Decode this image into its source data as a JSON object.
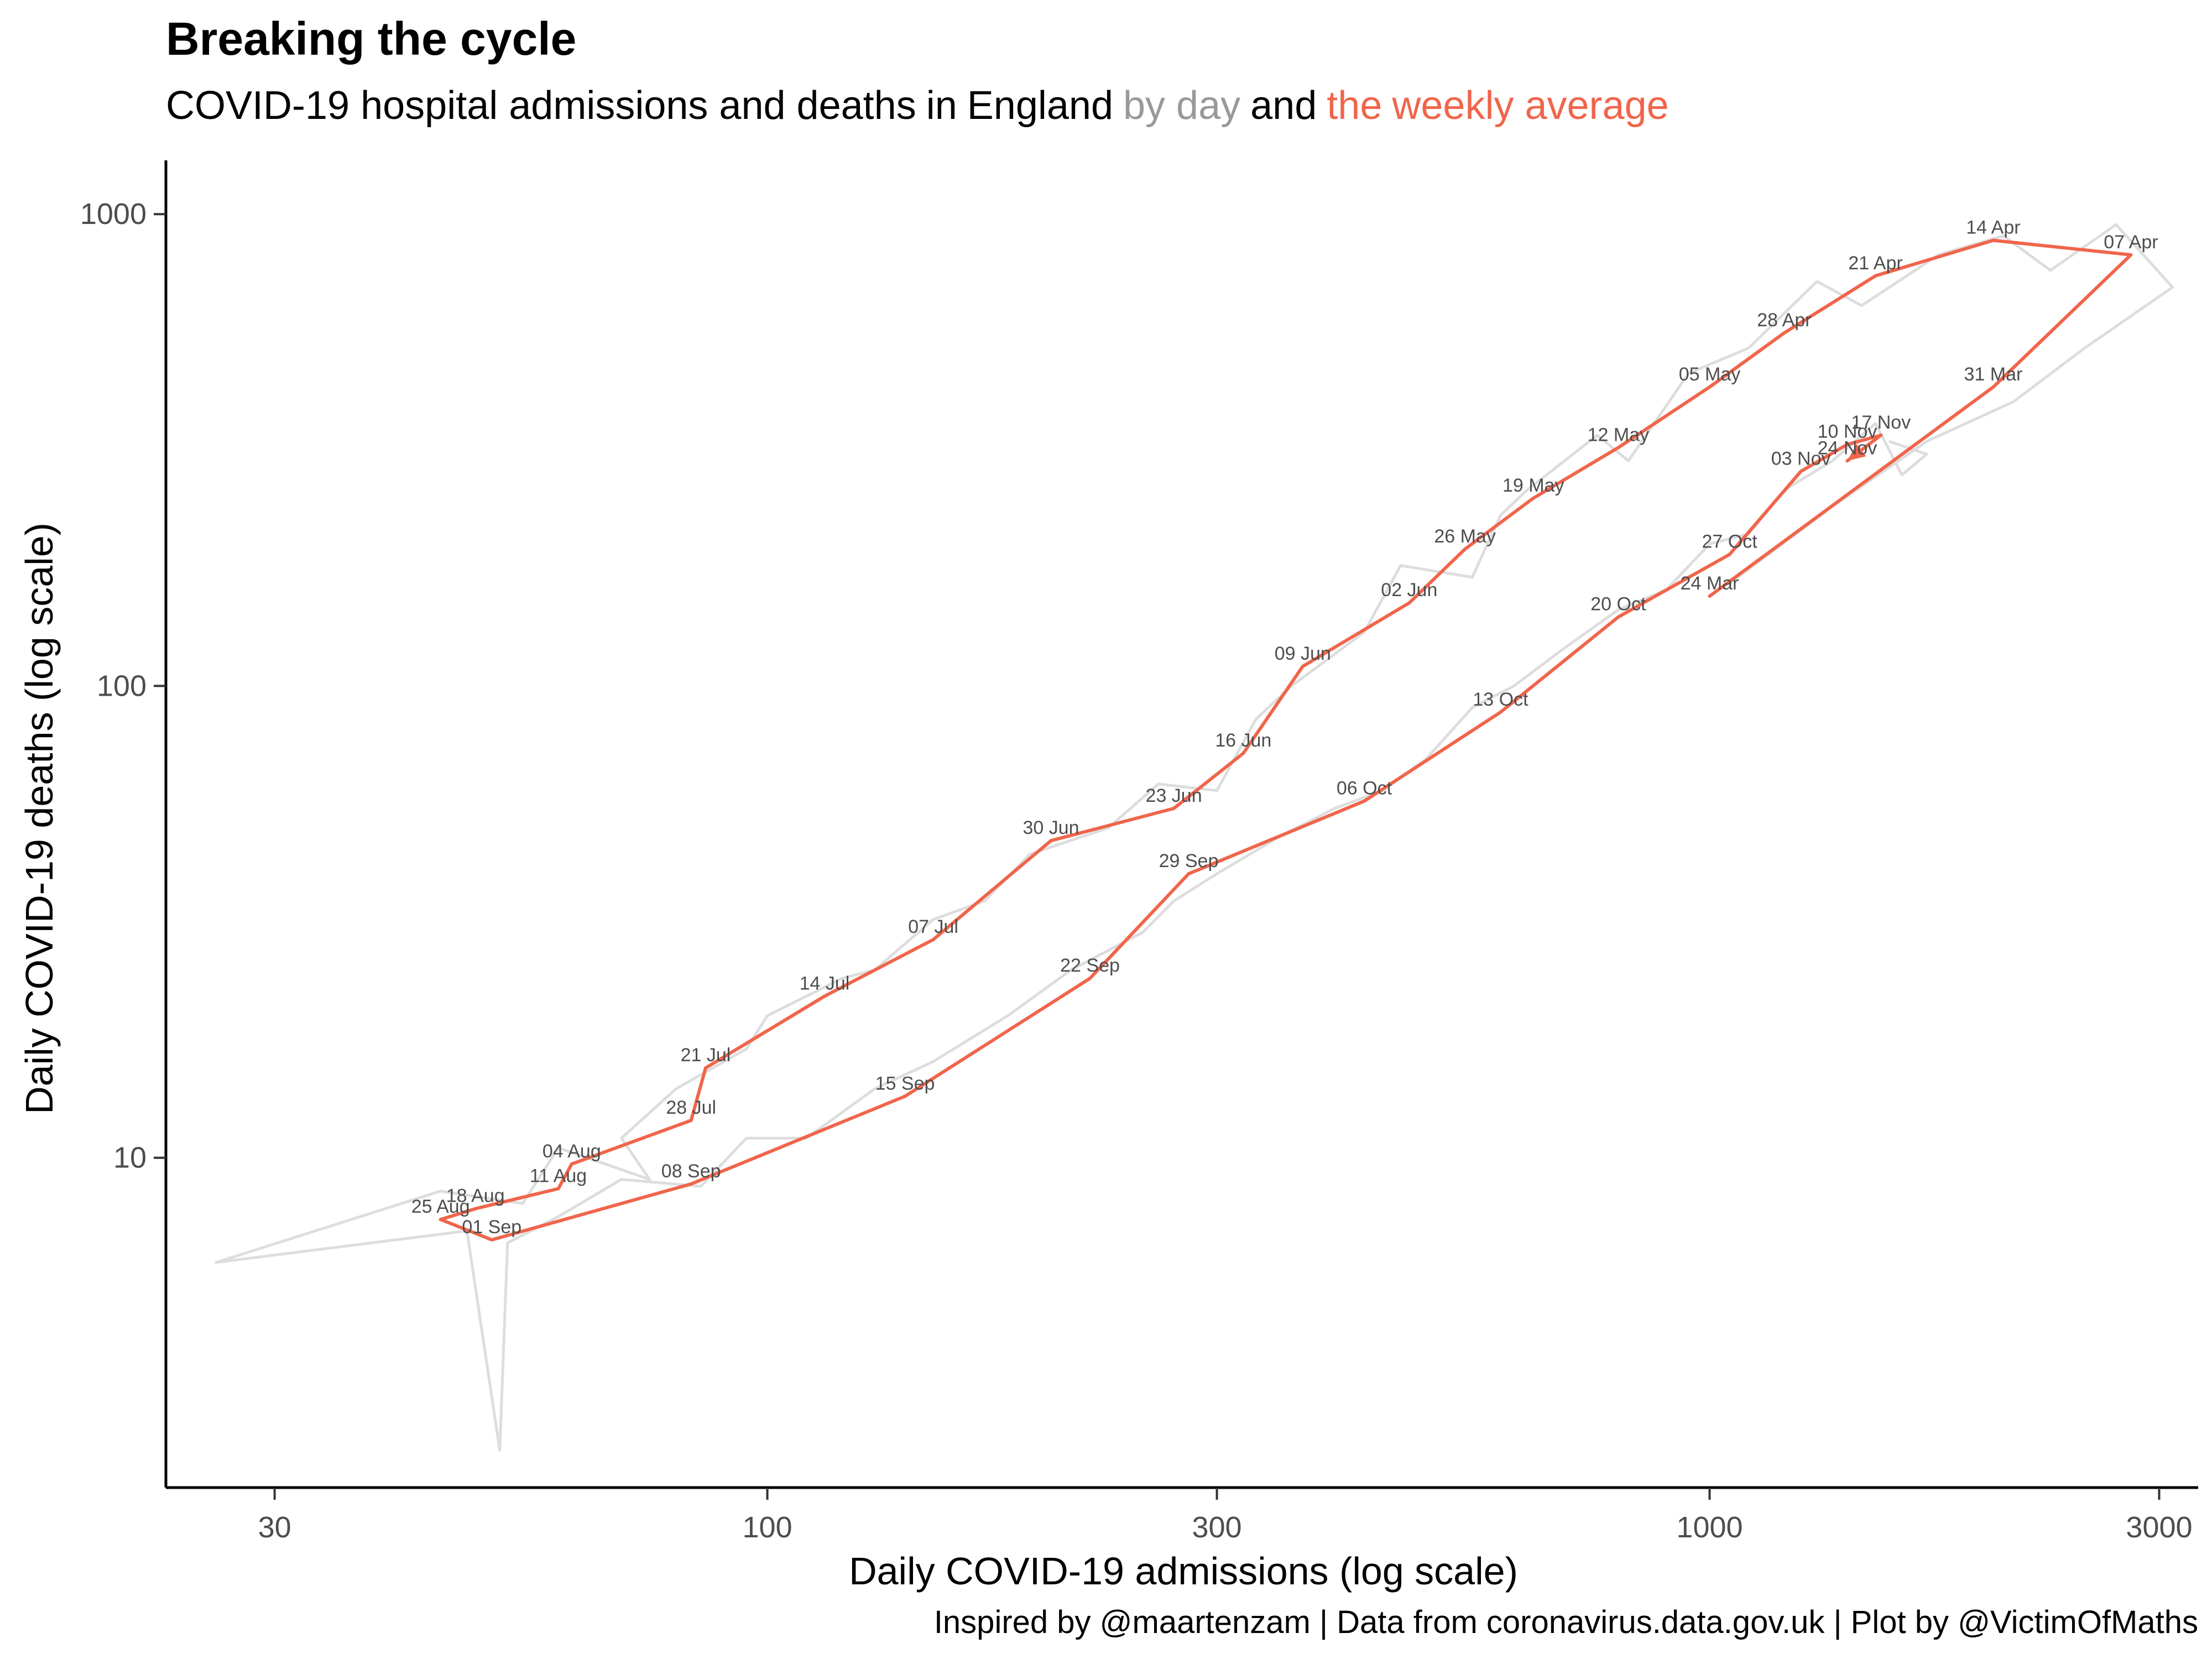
{
  "title": "Breaking the cycle",
  "subtitle": {
    "part1": "COVID-19 hospital admissions and deaths",
    "part2": "in",
    "part3": "England",
    "part4": "by day",
    "part5": "and",
    "part6": "the",
    "part7": "weekly average"
  },
  "caption": "Inspired by @maartenzam | Data from coronavirus.data.gov.uk | Plot by @VictimOfMaths",
  "colors": {
    "daily": "#DDDDDD",
    "weekly": "#F0654B",
    "accent_gray": "#999999"
  },
  "chart_data": {
    "type": "line",
    "xlabel": "Daily COVID-19 admissions (log scale)",
    "ylabel": "Daily COVID-19 deaths (log scale)",
    "x_scale": "log",
    "y_scale": "log",
    "xlim": [
      23,
      3300
    ],
    "ylim": [
      2.0,
      1300
    ],
    "x_ticks": [
      {
        "value": 30,
        "label": "30"
      },
      {
        "value": 100,
        "label": "100"
      },
      {
        "value": 300,
        "label": "300"
      },
      {
        "value": 1000,
        "label": "1000"
      },
      {
        "value": 3000,
        "label": "3000"
      }
    ],
    "y_ticks": [
      {
        "value": 10,
        "label": "10"
      },
      {
        "value": 100,
        "label": "100"
      },
      {
        "value": 1000,
        "label": "1000"
      }
    ],
    "grid": false,
    "series": [
      {
        "name": "weekly average",
        "color": "#F0654B",
        "points": [
          {
            "x": 1000,
            "y": 155,
            "label": "24 Mar"
          },
          {
            "x": 2000,
            "y": 430,
            "label": "31 Mar"
          },
          {
            "x": 2800,
            "y": 820,
            "label": "07 Apr"
          },
          {
            "x": 2000,
            "y": 880,
            "label": "14 Apr"
          },
          {
            "x": 1500,
            "y": 740,
            "label": "21 Apr"
          },
          {
            "x": 1200,
            "y": 560,
            "label": "28 Apr"
          },
          {
            "x": 1000,
            "y": 430,
            "label": "05 May"
          },
          {
            "x": 800,
            "y": 320,
            "label": "12 May"
          },
          {
            "x": 650,
            "y": 250,
            "label": "19 May"
          },
          {
            "x": 550,
            "y": 195,
            "label": "26 May"
          },
          {
            "x": 480,
            "y": 150,
            "label": "02 Jun"
          },
          {
            "x": 370,
            "y": 110,
            "label": "09 Jun"
          },
          {
            "x": 320,
            "y": 72,
            "label": "16 Jun"
          },
          {
            "x": 270,
            "y": 55,
            "label": "23 Jun"
          },
          {
            "x": 200,
            "y": 47,
            "label": "30 Jun"
          },
          {
            "x": 150,
            "y": 29,
            "label": "07 Jul"
          },
          {
            "x": 115,
            "y": 22,
            "label": "14 Jul"
          },
          {
            "x": 86,
            "y": 15.5,
            "label": "21 Jul"
          },
          {
            "x": 83,
            "y": 12,
            "label": "28 Jul"
          },
          {
            "x": 62,
            "y": 9.7,
            "label": "04 Aug"
          },
          {
            "x": 60,
            "y": 8.6,
            "label": "11 Aug"
          },
          {
            "x": 49,
            "y": 7.8,
            "label": "18 Aug"
          },
          {
            "x": 45,
            "y": 7.4,
            "label": "25 Aug"
          },
          {
            "x": 51,
            "y": 6.7,
            "label": "01 Sep"
          },
          {
            "x": 83,
            "y": 8.8,
            "label": "08 Sep"
          },
          {
            "x": 140,
            "y": 13.5,
            "label": "15 Sep"
          },
          {
            "x": 220,
            "y": 24,
            "label": "22 Sep"
          },
          {
            "x": 280,
            "y": 40,
            "label": "29 Sep"
          },
          {
            "x": 430,
            "y": 57,
            "label": "06 Oct"
          },
          {
            "x": 600,
            "y": 88,
            "label": "13 Oct"
          },
          {
            "x": 800,
            "y": 140,
            "label": "20 Oct"
          },
          {
            "x": 1050,
            "y": 190,
            "label": "27 Oct"
          },
          {
            "x": 1250,
            "y": 285,
            "label": "03 Nov"
          },
          {
            "x": 1400,
            "y": 325,
            "label": "10 Nov"
          },
          {
            "x": 1520,
            "y": 340,
            "label": "17 Nov"
          },
          {
            "x": 1400,
            "y": 300,
            "label": "24 Nov"
          }
        ]
      },
      {
        "name": "by day",
        "color": "#DDDDDD",
        "points": [
          {
            "x": 1050,
            "y": 165
          },
          {
            "x": 1350,
            "y": 240
          },
          {
            "x": 1700,
            "y": 330
          },
          {
            "x": 2100,
            "y": 400
          },
          {
            "x": 2500,
            "y": 520
          },
          {
            "x": 3100,
            "y": 700
          },
          {
            "x": 2700,
            "y": 950
          },
          {
            "x": 2300,
            "y": 760
          },
          {
            "x": 2050,
            "y": 900
          },
          {
            "x": 1750,
            "y": 820
          },
          {
            "x": 1450,
            "y": 640
          },
          {
            "x": 1300,
            "y": 720
          },
          {
            "x": 1100,
            "y": 520
          },
          {
            "x": 950,
            "y": 460
          },
          {
            "x": 820,
            "y": 300
          },
          {
            "x": 760,
            "y": 340
          },
          {
            "x": 640,
            "y": 260
          },
          {
            "x": 600,
            "y": 230
          },
          {
            "x": 560,
            "y": 170
          },
          {
            "x": 470,
            "y": 180
          },
          {
            "x": 430,
            "y": 130
          },
          {
            "x": 360,
            "y": 100
          },
          {
            "x": 330,
            "y": 85
          },
          {
            "x": 300,
            "y": 60
          },
          {
            "x": 260,
            "y": 62
          },
          {
            "x": 230,
            "y": 50
          },
          {
            "x": 190,
            "y": 44
          },
          {
            "x": 170,
            "y": 35
          },
          {
            "x": 150,
            "y": 32
          },
          {
            "x": 130,
            "y": 25
          },
          {
            "x": 120,
            "y": 24
          },
          {
            "x": 100,
            "y": 20
          },
          {
            "x": 95,
            "y": 17
          },
          {
            "x": 80,
            "y": 14
          },
          {
            "x": 70,
            "y": 11
          },
          {
            "x": 75,
            "y": 9
          },
          {
            "x": 60,
            "y": 10.5
          },
          {
            "x": 55,
            "y": 8
          },
          {
            "x": 45,
            "y": 8.5
          },
          {
            "x": 26,
            "y": 6.0
          },
          {
            "x": 48,
            "y": 7.0
          },
          {
            "x": 52,
            "y": 2.4
          },
          {
            "x": 53,
            "y": 6.6
          },
          {
            "x": 60,
            "y": 7.5
          },
          {
            "x": 70,
            "y": 9
          },
          {
            "x": 85,
            "y": 8.7
          },
          {
            "x": 95,
            "y": 11
          },
          {
            "x": 110,
            "y": 11
          },
          {
            "x": 130,
            "y": 14
          },
          {
            "x": 150,
            "y": 16
          },
          {
            "x": 180,
            "y": 20
          },
          {
            "x": 210,
            "y": 25
          },
          {
            "x": 250,
            "y": 30
          },
          {
            "x": 270,
            "y": 35
          },
          {
            "x": 300,
            "y": 40
          },
          {
            "x": 350,
            "y": 48
          },
          {
            "x": 400,
            "y": 55
          },
          {
            "x": 450,
            "y": 60
          },
          {
            "x": 500,
            "y": 70
          },
          {
            "x": 560,
            "y": 90
          },
          {
            "x": 620,
            "y": 100
          },
          {
            "x": 700,
            "y": 120
          },
          {
            "x": 800,
            "y": 145
          },
          {
            "x": 900,
            "y": 160
          },
          {
            "x": 1000,
            "y": 200
          },
          {
            "x": 1100,
            "y": 210
          },
          {
            "x": 1200,
            "y": 260
          },
          {
            "x": 1350,
            "y": 300
          },
          {
            "x": 1500,
            "y": 360
          },
          {
            "x": 1600,
            "y": 280
          },
          {
            "x": 1700,
            "y": 310
          },
          {
            "x": 1550,
            "y": 330
          }
        ]
      }
    ]
  }
}
